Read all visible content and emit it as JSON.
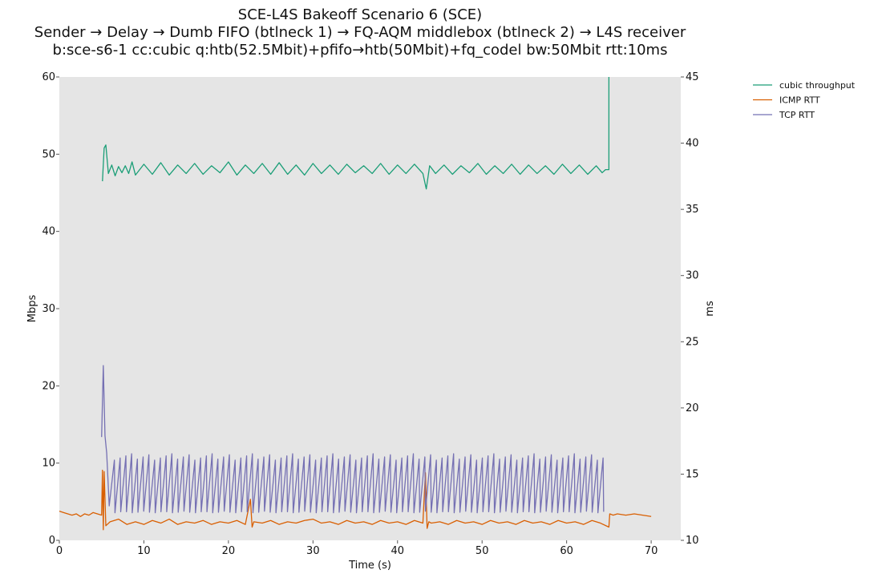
{
  "chart_data": {
    "type": "line",
    "title_lines": [
      "SCE-L4S Bakeoff Scenario 6 (SCE)",
      "Sender → Delay → Dumb FIFO (btlneck 1) → FQ-AQM middlebox (btlneck 2) → L4S receiver",
      "b:sce-s6-1 cc:cubic q:htb(52.5Mbit)+pfifo→htb(50Mbit)+fq_codel bw:50Mbit rtt:10ms"
    ],
    "xlabel": "Time (s)",
    "ylabel_left": "Mbps",
    "ylabel_right": "ms",
    "xlim": [
      0,
      73.5
    ],
    "ylim_left": [
      0,
      60
    ],
    "ylim_right": [
      10,
      45
    ],
    "xticks": [
      0,
      10,
      20,
      30,
      40,
      50,
      60,
      70
    ],
    "yticks_left": [
      0,
      10,
      20,
      30,
      40,
      50,
      60
    ],
    "yticks_right": [
      10,
      15,
      20,
      25,
      30,
      35,
      40,
      45
    ],
    "grid": false,
    "background": "#e5e5e5",
    "legend_position": "outside top-right",
    "series": [
      {
        "name": "cubic throughput",
        "axis": "left",
        "color": "#1b9e77",
        "segments": [
          {
            "x": [
              5.1,
              5.3,
              5.5,
              5.8,
              6.2,
              6.6,
              7.0,
              7.4,
              7.8,
              8.2,
              8.6,
              9.0,
              10.0,
              11.0,
              12.0,
              13.0,
              14.0,
              15.0,
              16.0,
              17.0,
              18.0,
              19.0,
              20.0,
              21.0,
              22.0,
              23.0,
              24.0,
              25.0,
              26.0,
              27.0,
              28.0,
              29.0,
              30.0,
              31.0,
              32.0,
              33.0,
              34.0,
              35.0,
              36.0,
              37.0,
              38.0,
              39.0,
              40.0,
              41.0,
              42.0,
              43.0,
              43.4,
              43.8,
              44.5,
              45.5,
              46.5,
              47.5,
              48.5,
              49.5,
              50.5,
              51.5,
              52.5,
              53.5,
              54.5,
              55.5,
              56.5,
              57.5,
              58.5,
              59.5,
              60.5,
              61.5,
              62.5,
              63.5,
              64.2,
              64.6,
              65.0,
              65.0
            ],
            "y": [
              46.5,
              50.8,
              51.2,
              47.5,
              48.6,
              47.2,
              48.4,
              47.6,
              48.5,
              47.5,
              49.0,
              47.3,
              48.7,
              47.4,
              48.9,
              47.3,
              48.6,
              47.5,
              48.8,
              47.4,
              48.5,
              47.6,
              49.0,
              47.3,
              48.6,
              47.5,
              48.8,
              47.4,
              48.9,
              47.4,
              48.6,
              47.3,
              48.8,
              47.5,
              48.6,
              47.4,
              48.7,
              47.6,
              48.5,
              47.5,
              48.8,
              47.4,
              48.6,
              47.5,
              48.7,
              47.5,
              45.5,
              48.5,
              47.5,
              48.6,
              47.4,
              48.5,
              47.6,
              48.8,
              47.4,
              48.5,
              47.5,
              48.7,
              47.4,
              48.6,
              47.5,
              48.5,
              47.4,
              48.7,
              47.5,
              48.6,
              47.4,
              48.5,
              47.6,
              48.0,
              48.0,
              60.0
            ]
          }
        ]
      },
      {
        "name": "ICMP RTT",
        "axis": "right",
        "color": "#d95f02",
        "segments": [
          {
            "x": [
              0.0,
              0.5,
              1.0,
              1.5,
              2.0,
              2.5,
              3.0,
              3.5,
              4.0,
              4.5,
              5.0,
              5.1,
              5.2,
              5.3,
              5.5,
              6.0,
              7.0,
              8.0,
              9.0,
              10.0,
              11.0,
              12.0,
              13.0,
              14.0,
              15.0,
              16.0,
              17.0,
              18.0,
              19.0,
              20.0,
              21.0,
              22.0,
              22.6,
              22.8,
              23.0,
              24.0,
              25.0,
              26.0,
              27.0,
              28.0,
              29.0,
              30.0,
              31.0,
              32.0,
              33.0,
              34.0,
              35.0,
              36.0,
              37.0,
              38.0,
              39.0,
              40.0,
              41.0,
              42.0,
              43.0,
              43.3,
              43.5,
              43.7,
              44.0,
              45.0,
              46.0,
              47.0,
              48.0,
              49.0,
              50.0,
              51.0,
              52.0,
              53.0,
              54.0,
              55.0,
              56.0,
              57.0,
              58.0,
              59.0,
              60.0,
              61.0,
              62.0,
              63.0,
              64.0,
              65.0,
              65.1,
              65.5,
              66.0,
              67.0,
              68.0,
              69.0,
              70.0
            ],
            "y": [
              12.2,
              12.1,
              12.0,
              11.9,
              12.0,
              11.8,
              12.0,
              11.9,
              12.1,
              12.0,
              11.9,
              15.3,
              10.8,
              15.2,
              11.1,
              11.4,
              11.6,
              11.2,
              11.4,
              11.2,
              11.5,
              11.3,
              11.6,
              11.2,
              11.4,
              11.3,
              11.5,
              11.2,
              11.4,
              11.3,
              11.5,
              11.2,
              13.1,
              11.0,
              11.4,
              11.3,
              11.5,
              11.2,
              11.4,
              11.3,
              11.5,
              11.6,
              11.3,
              11.4,
              11.2,
              11.5,
              11.3,
              11.4,
              11.2,
              11.5,
              11.3,
              11.4,
              11.2,
              11.5,
              11.3,
              15.1,
              10.9,
              11.4,
              11.3,
              11.4,
              11.2,
              11.5,
              11.3,
              11.4,
              11.2,
              11.5,
              11.3,
              11.4,
              11.2,
              11.5,
              11.3,
              11.4,
              11.2,
              11.5,
              11.3,
              11.4,
              11.2,
              11.5,
              11.3,
              11.0,
              12.0,
              11.9,
              12.0,
              11.9,
              12.0,
              11.9,
              11.8
            ]
          }
        ]
      },
      {
        "name": "TCP RTT",
        "axis": "right",
        "color": "#7570b3",
        "segments": [
          {
            "x": [
              5.0,
              5.2,
              5.4,
              5.6,
              5.9
            ],
            "y": [
              17.8,
              23.2,
              17.9,
              16.6,
              12.6
            ],
            "sawtooth": {
              "start": 5.9,
              "end": 65.0,
              "period": 0.68,
              "low": 12.2,
              "high": 16.3
            }
          }
        ]
      }
    ]
  }
}
